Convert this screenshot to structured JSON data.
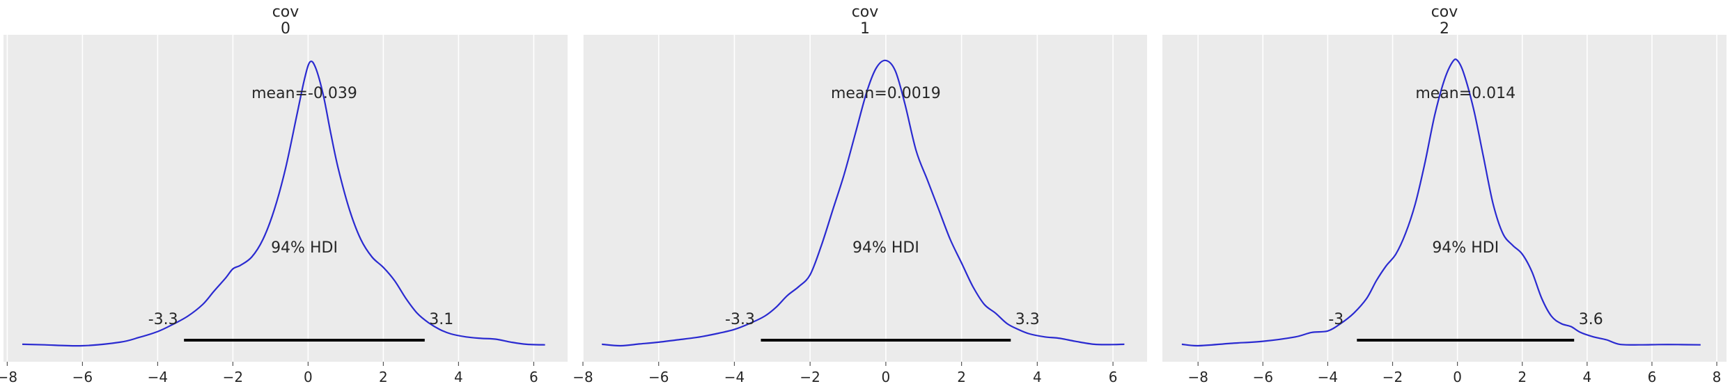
{
  "chart_data": [
    {
      "type": "line",
      "title": "cov\n0",
      "title_lines": [
        "cov",
        "0"
      ],
      "xlabel": "",
      "ylabel": "",
      "xlim": [
        -8.1,
        6.9
      ],
      "xticks": [
        -8,
        -6,
        -4,
        -2,
        0,
        2,
        4,
        6
      ],
      "xtick_labels": [
        "−8",
        "−6",
        "−4",
        "−2",
        "0",
        "2",
        "4",
        "6"
      ],
      "grid": true,
      "series": [
        {
          "x": [
            -7.6,
            -7.0,
            -6.0,
            -5.0,
            -4.5,
            -4.0,
            -3.6,
            -3.2,
            -2.8,
            -2.5,
            -2.2,
            -2.0,
            -1.8,
            -1.5,
            -1.2,
            -0.9,
            -0.6,
            -0.3,
            -0.1,
            0.05,
            0.2,
            0.4,
            0.6,
            0.8,
            1.1,
            1.4,
            1.7,
            2.0,
            2.3,
            2.6,
            2.9,
            3.2,
            3.5,
            3.8,
            4.2,
            4.6,
            5.0,
            5.4,
            5.8,
            6.3
          ],
          "y": [
            0.005,
            0.003,
            0.0,
            0.012,
            0.028,
            0.048,
            0.072,
            0.1,
            0.14,
            0.185,
            0.228,
            0.26,
            0.272,
            0.3,
            0.36,
            0.46,
            0.6,
            0.78,
            0.9,
            0.96,
            0.94,
            0.85,
            0.72,
            0.6,
            0.46,
            0.36,
            0.3,
            0.265,
            0.22,
            0.16,
            0.11,
            0.078,
            0.055,
            0.04,
            0.03,
            0.025,
            0.022,
            0.012,
            0.005,
            0.003
          ]
        }
      ],
      "mean_label": "mean=-0.039",
      "hdi_label": "94% HDI",
      "hdi": [
        -3.3,
        3.1
      ],
      "hdi_low_label": "-3.3",
      "hdi_high_label": "3.1"
    },
    {
      "type": "line",
      "title": "cov\n1",
      "title_lines": [
        "cov",
        "1"
      ],
      "xlabel": "",
      "ylabel": "",
      "xlim": [
        -8.0,
        6.9
      ],
      "xticks": [
        -8,
        -6,
        -4,
        -2,
        0,
        2,
        4,
        6
      ],
      "xtick_labels": [
        "−8",
        "−6",
        "−4",
        "−2",
        "0",
        "2",
        "4",
        "6"
      ],
      "grid": true,
      "series": [
        {
          "x": [
            -7.5,
            -7.0,
            -6.5,
            -6.0,
            -5.5,
            -5.0,
            -4.5,
            -4.0,
            -3.6,
            -3.2,
            -2.9,
            -2.6,
            -2.3,
            -2.0,
            -1.7,
            -1.4,
            -1.1,
            -0.8,
            -0.5,
            -0.25,
            0.0,
            0.25,
            0.5,
            0.8,
            1.1,
            1.4,
            1.7,
            2.0,
            2.3,
            2.6,
            2.9,
            3.2,
            3.5,
            3.8,
            4.2,
            4.6,
            5.0,
            5.5,
            6.0,
            6.3
          ],
          "y": [
            0.005,
            0.0,
            0.006,
            0.012,
            0.02,
            0.028,
            0.04,
            0.055,
            0.075,
            0.1,
            0.13,
            0.17,
            0.2,
            0.24,
            0.34,
            0.46,
            0.58,
            0.72,
            0.86,
            0.94,
            0.965,
            0.93,
            0.82,
            0.66,
            0.56,
            0.46,
            0.36,
            0.28,
            0.2,
            0.14,
            0.11,
            0.075,
            0.055,
            0.04,
            0.03,
            0.025,
            0.015,
            0.005,
            0.004,
            0.005
          ]
        }
      ],
      "mean_label": "mean=0.0019",
      "hdi_label": "94% HDI",
      "hdi": [
        -3.3,
        3.3
      ],
      "hdi_low_label": "-3.3",
      "hdi_high_label": "3.3"
    },
    {
      "type": "line",
      "title": "cov\n2",
      "title_lines": [
        "cov",
        "2"
      ],
      "xlabel": "",
      "ylabel": "",
      "xlim": [
        -9.1,
        8.3
      ],
      "xticks": [
        -8,
        -6,
        -4,
        -2,
        0,
        2,
        4,
        6,
        8
      ],
      "xtick_labels": [
        "−8",
        "−6",
        "−4",
        "−2",
        "0",
        "2",
        "4",
        "6",
        "8"
      ],
      "grid": true,
      "series": [
        {
          "x": [
            -8.5,
            -8.0,
            -7.0,
            -6.0,
            -5.0,
            -4.5,
            -4.0,
            -3.6,
            -3.2,
            -2.8,
            -2.5,
            -2.2,
            -1.9,
            -1.6,
            -1.3,
            -1.0,
            -0.7,
            -0.4,
            -0.15,
            0.0,
            0.2,
            0.5,
            0.8,
            1.1,
            1.4,
            1.7,
            2.0,
            2.3,
            2.6,
            2.9,
            3.2,
            3.5,
            3.8,
            4.2,
            4.6,
            5.0,
            5.6,
            6.2,
            6.8,
            7.5
          ],
          "y": [
            0.005,
            0.0,
            0.008,
            0.015,
            0.03,
            0.045,
            0.05,
            0.075,
            0.11,
            0.16,
            0.22,
            0.27,
            0.31,
            0.38,
            0.48,
            0.62,
            0.78,
            0.9,
            0.96,
            0.965,
            0.92,
            0.8,
            0.64,
            0.48,
            0.38,
            0.34,
            0.31,
            0.25,
            0.16,
            0.1,
            0.075,
            0.065,
            0.045,
            0.03,
            0.02,
            0.005,
            0.003,
            0.004,
            0.004,
            0.003
          ]
        }
      ],
      "mean_label": "mean=0.014",
      "hdi_label": "94% HDI",
      "hdi": [
        -3.1,
        3.6
      ],
      "hdi_low_label": "-3",
      "hdi_high_label": "3.6"
    }
  ],
  "colors": {
    "axes_bg": "#ebebeb",
    "grid": "#ffffff",
    "curve": "#2a2ad0",
    "hdi_bar": "#000000",
    "text": "#262626"
  }
}
